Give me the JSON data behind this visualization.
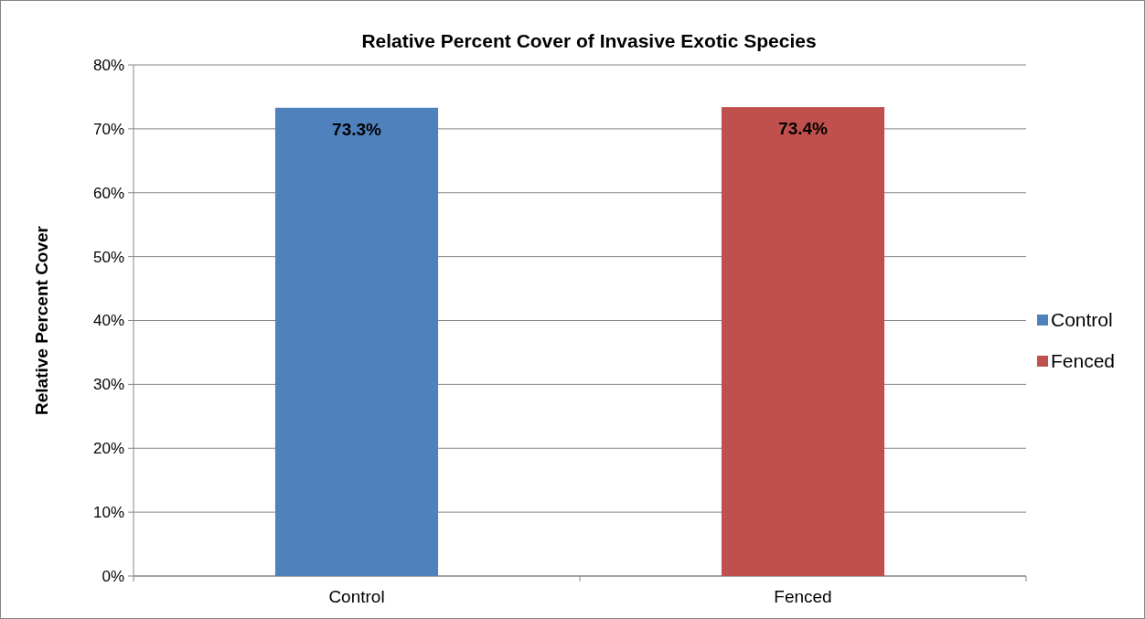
{
  "chart_data": {
    "type": "bar",
    "title": "Relative Percent Cover of Invasive Exotic Species",
    "ylabel": "Relative Percent Cover",
    "categories": [
      "Control",
      "Fenced"
    ],
    "stacked": true,
    "series": [
      {
        "name": "Control",
        "color": "#4f81bd",
        "values": [
          73.3,
          null
        ],
        "value_labels": [
          "73.3%",
          null
        ]
      },
      {
        "name": "Fenced",
        "color": "#c0504d",
        "values": [
          null,
          73.4
        ],
        "value_labels": [
          null,
          "73.4%"
        ]
      }
    ],
    "ylim": [
      0,
      80
    ],
    "yticks": [
      {
        "value": 0,
        "label": "0%"
      },
      {
        "value": 10,
        "label": "10%"
      },
      {
        "value": 20,
        "label": "20%"
      },
      {
        "value": 30,
        "label": "30%"
      },
      {
        "value": 40,
        "label": "40%"
      },
      {
        "value": 50,
        "label": "50%"
      },
      {
        "value": 60,
        "label": "60%"
      },
      {
        "value": 70,
        "label": "70%"
      },
      {
        "value": 80,
        "label": "80%"
      }
    ],
    "grid": "y",
    "legend": "right"
  }
}
